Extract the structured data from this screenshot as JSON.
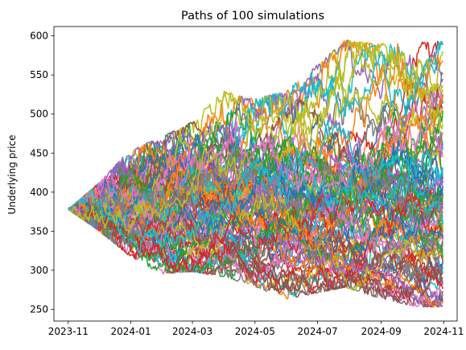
{
  "chart_data": {
    "type": "line",
    "title": "Paths of 100 simulations",
    "xlabel": "",
    "ylabel": "Underlying price",
    "x_start": "2023-11-01",
    "x_end": "2024-10-31",
    "xlim": [
      "2023-10-18",
      "2024-11-14"
    ],
    "ylim": [
      235,
      612
    ],
    "x_ticks": [
      "2023-11",
      "2024-01",
      "2024-03",
      "2024-05",
      "2024-07",
      "2024-09",
      "2024-11"
    ],
    "y_ticks": [
      250,
      300,
      350,
      400,
      450,
      500,
      550,
      600
    ],
    "grid": false,
    "legend": "none",
    "series_count": 100,
    "start_value": 378,
    "envelope": {
      "max": [
        [
          0,
          378
        ],
        [
          30,
          412
        ],
        [
          60,
          455
        ],
        [
          90,
          470
        ],
        [
          120,
          490
        ],
        [
          150,
          530
        ],
        [
          180,
          520
        ],
        [
          210,
          528
        ],
        [
          240,
          560
        ],
        [
          270,
          595
        ],
        [
          300,
          590
        ],
        [
          340,
          593
        ]
      ],
      "min": [
        [
          0,
          378
        ],
        [
          30,
          350
        ],
        [
          60,
          318
        ],
        [
          90,
          295
        ],
        [
          120,
          298
        ],
        [
          150,
          292
        ],
        [
          180,
          280
        ],
        [
          210,
          262
        ],
        [
          240,
          270
        ],
        [
          270,
          278
        ],
        [
          300,
          265
        ],
        [
          340,
          253
        ]
      ]
    },
    "colors": [
      "#1f77b4",
      "#ff7f0e",
      "#2ca02c",
      "#d62728",
      "#9467bd",
      "#8c564b",
      "#e377c2",
      "#7f7f7f",
      "#bcbd22",
      "#17becf"
    ]
  }
}
